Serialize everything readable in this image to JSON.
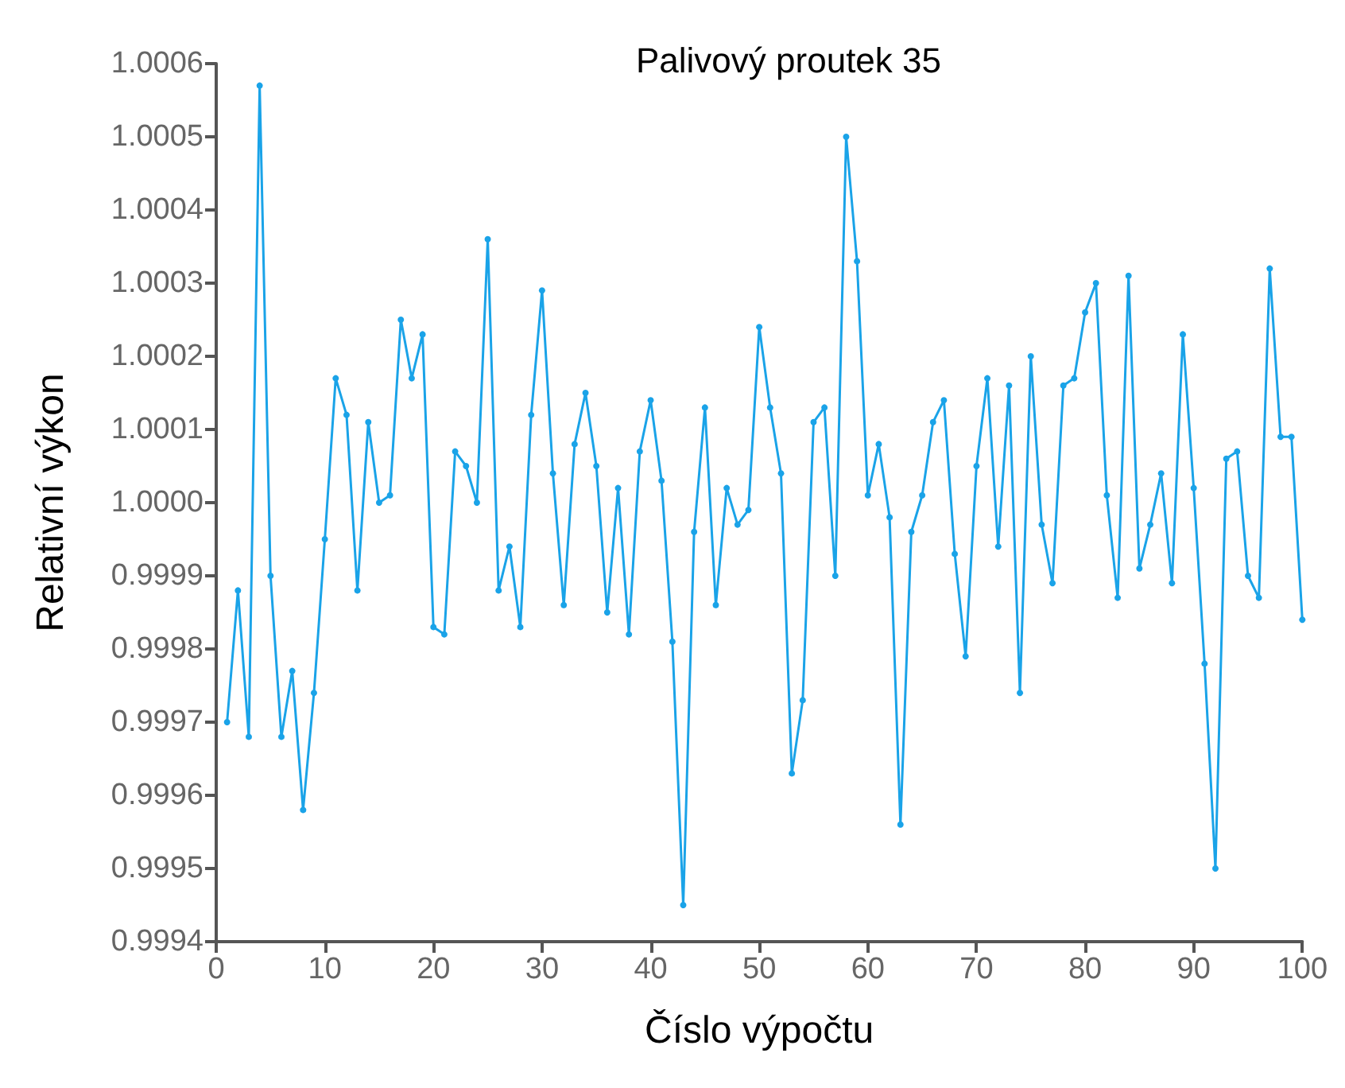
{
  "chart_data": {
    "type": "line",
    "title": "Palivový proutek 35",
    "xlabel": "Číslo výpočtu",
    "ylabel": "Relativní výkon",
    "x": [
      1,
      2,
      3,
      4,
      5,
      6,
      7,
      8,
      9,
      10,
      11,
      12,
      13,
      14,
      15,
      16,
      17,
      18,
      19,
      20,
      21,
      22,
      23,
      24,
      25,
      26,
      27,
      28,
      29,
      30,
      31,
      32,
      33,
      34,
      35,
      36,
      37,
      38,
      39,
      40,
      41,
      42,
      43,
      44,
      45,
      46,
      47,
      48,
      49,
      50,
      51,
      52,
      53,
      54,
      55,
      56,
      57,
      58,
      59,
      60,
      61,
      62,
      63,
      64,
      65,
      66,
      67,
      68,
      69,
      70,
      71,
      72,
      73,
      74,
      75,
      76,
      77,
      78,
      79,
      80,
      81,
      82,
      83,
      84,
      85,
      86,
      87,
      88,
      89,
      90,
      91,
      92,
      93,
      94,
      95,
      96,
      97,
      98,
      99,
      100
    ],
    "series": [
      {
        "color": "#1aa3e8",
        "values": [
          0.9997,
          0.99988,
          0.99968,
          1.00057,
          0.9999,
          0.99968,
          0.99977,
          0.99958,
          0.99974,
          0.99995,
          1.00017,
          1.00012,
          0.99988,
          1.00011,
          1.0,
          1.00001,
          1.00025,
          1.00017,
          1.00023,
          0.99983,
          0.99982,
          1.00007,
          1.00005,
          1.0,
          1.00036,
          0.99988,
          0.99994,
          0.99983,
          1.00012,
          1.00029,
          1.00004,
          0.99986,
          1.00008,
          1.00015,
          1.00005,
          0.99985,
          1.00002,
          0.99982,
          1.00007,
          1.00014,
          1.00003,
          0.99981,
          0.99945,
          0.99996,
          1.00013,
          0.99986,
          1.00002,
          0.99997,
          0.99999,
          1.00024,
          1.00013,
          1.00004,
          0.99963,
          0.99973,
          1.00011,
          1.00013,
          0.9999,
          1.0005,
          1.00033,
          1.00001,
          1.00008,
          0.99998,
          0.99956,
          0.99996,
          1.00001,
          1.00011,
          1.00014,
          0.99993,
          0.99979,
          1.00005,
          1.00017,
          0.99994,
          1.00016,
          0.99974,
          1.0002,
          0.99997,
          0.99989,
          1.00016,
          1.00017,
          1.00026,
          1.0003,
          1.00001,
          0.99987,
          1.00031,
          0.99991,
          0.99997,
          1.00004,
          0.99989,
          1.00023,
          1.00002,
          0.99978,
          0.9995,
          1.00006,
          1.00007,
          0.9999,
          0.99987,
          1.00032,
          1.00009,
          1.00009,
          0.99984
        ]
      }
    ],
    "xlim": [
      0,
      100
    ],
    "xticks": [
      0,
      10,
      20,
      30,
      40,
      50,
      60,
      70,
      80,
      90,
      100
    ],
    "ylim": [
      0.9994,
      1.0006
    ],
    "yticks": [
      0.9994,
      0.9995,
      0.9996,
      0.9997,
      0.9998,
      0.9999,
      {
        "value": 1,
        "label": "1.0000"
      },
      1.0001,
      1.0002,
      1.0003,
      1.0004,
      1.0005,
      1.0006
    ],
    "grid": false,
    "marker": "circle",
    "line_style": "solid"
  }
}
